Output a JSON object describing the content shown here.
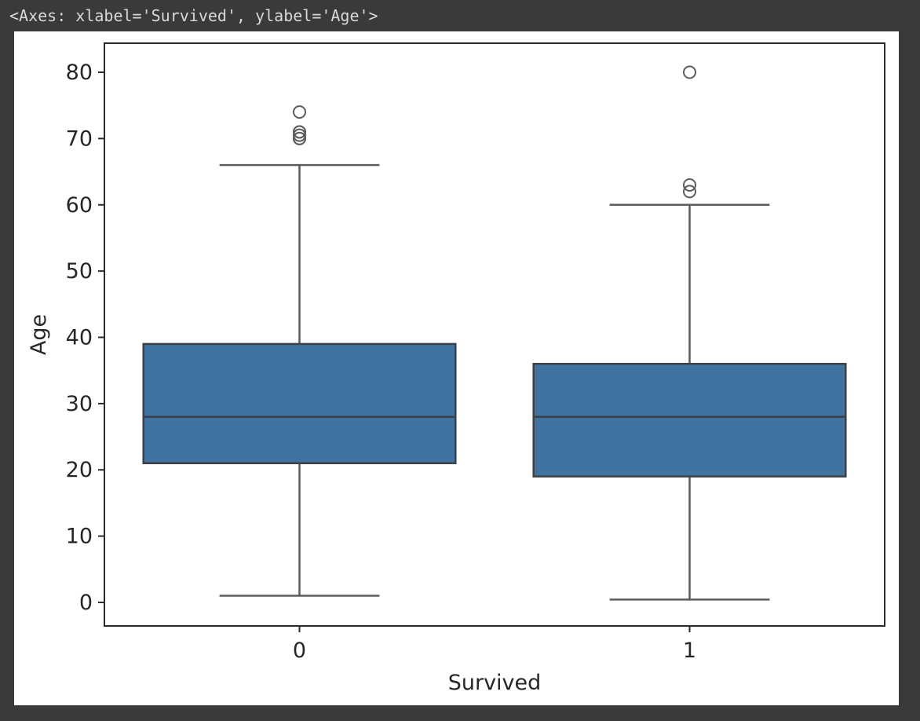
{
  "page": {
    "background_color": "#3a3a3a",
    "figure_background_color": "#ffffff"
  },
  "console": {
    "repr_text": "<Axes: xlabel='Survived', ylabel='Age'>",
    "text_color": "#d8d8d8"
  },
  "chart_data": {
    "type": "box",
    "title": "",
    "xlabel": "Survived",
    "ylabel": "Age",
    "categories": [
      "0",
      "1"
    ],
    "yticks": [
      0,
      10,
      20,
      30,
      40,
      50,
      60,
      70,
      80
    ],
    "ylim": [
      -3.56,
      84.39
    ],
    "grid": false,
    "legend": null,
    "box_width_fraction": 0.8,
    "cap_width_fraction": 0.41,
    "boxes": [
      {
        "category": "0",
        "whisker_low": 1.0,
        "q1": 21,
        "median": 28,
        "q3": 39,
        "whisker_high": 66,
        "outliers": [
          70,
          70,
          70.5,
          71,
          71,
          74
        ]
      },
      {
        "category": "1",
        "whisker_low": 0.42,
        "q1": 19,
        "median": 28,
        "q3": 36,
        "whisker_high": 60,
        "outliers": [
          62,
          63,
          80
        ]
      }
    ],
    "styles": {
      "box_fill": "#4173A1",
      "box_edge": "#3d4147",
      "median_color": "#3d4147",
      "whisker_color": "#5c5c5c",
      "flier_color": "#5c5c5c",
      "spine_color": "#2b2b2b",
      "tick_label_color": "#262626",
      "axis_label_color": "#262626"
    }
  }
}
